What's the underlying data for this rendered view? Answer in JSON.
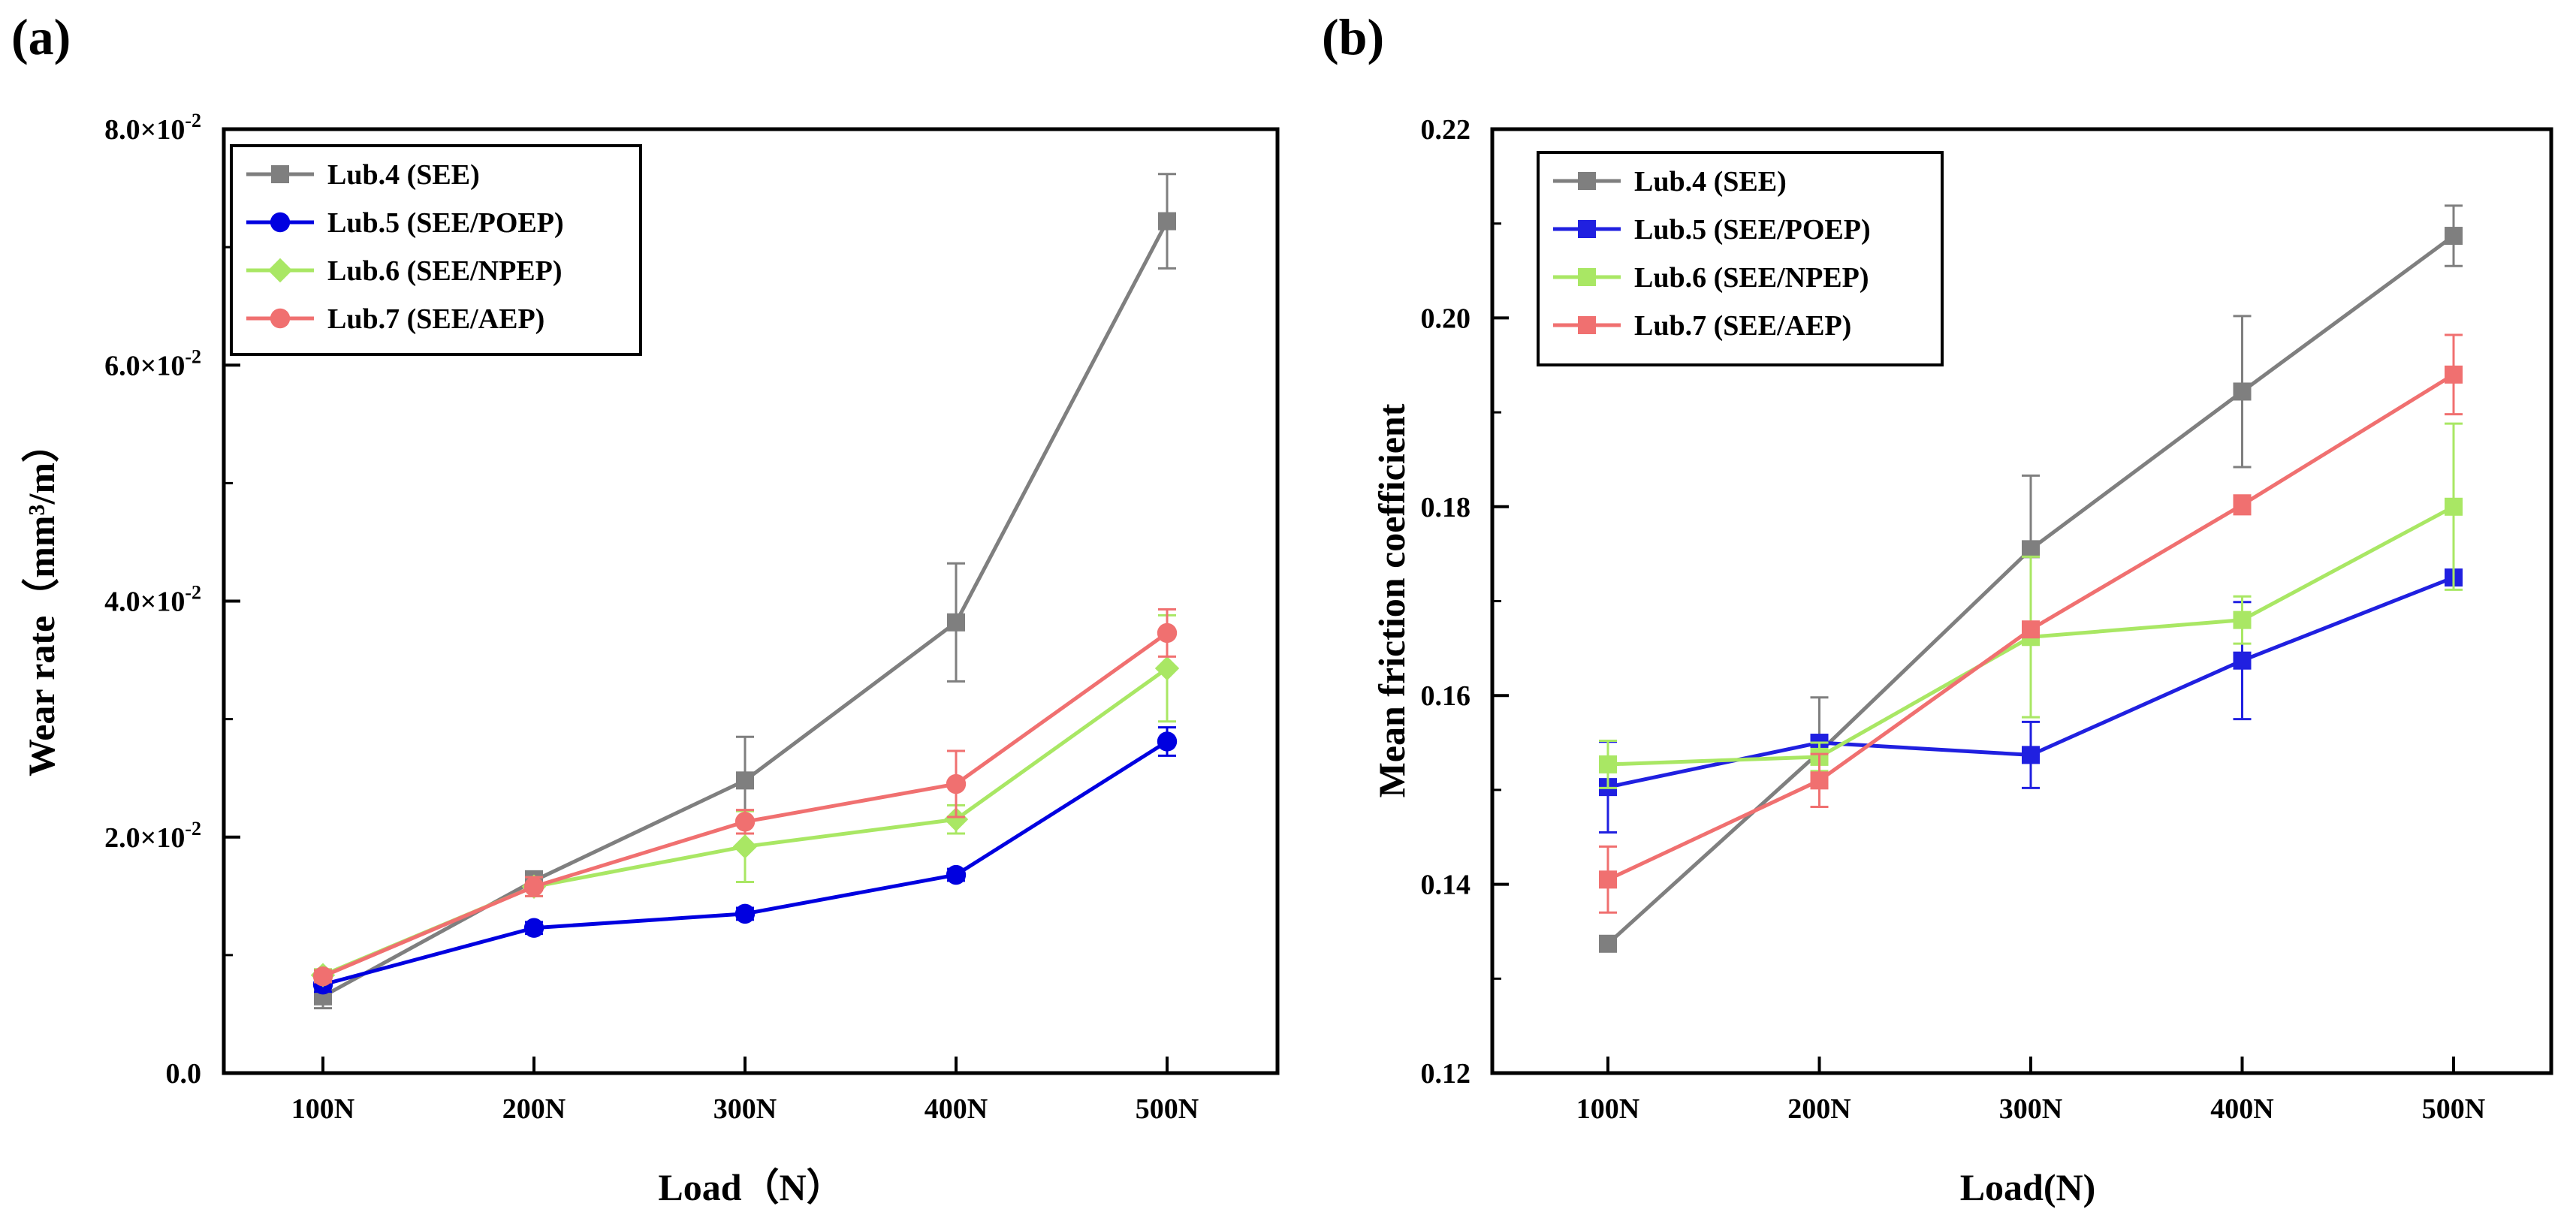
{
  "chart_data": [
    {
      "type": "line",
      "panel_label": "(a)",
      "xlabel": "Load（N）",
      "ylabel": "Wear rate（mm³/m）",
      "categories": [
        "100N",
        "200N",
        "300N",
        "400N",
        "500N"
      ],
      "ylim": [
        0,
        0.08
      ],
      "yticks": [
        {
          "value": 0.0,
          "label_base": "0.0",
          "label_exp": ""
        },
        {
          "value": 0.02,
          "label_base": "2.0×10",
          "label_exp": "-2"
        },
        {
          "value": 0.04,
          "label_base": "4.0×10",
          "label_exp": "-2"
        },
        {
          "value": 0.06,
          "label_base": "6.0×10",
          "label_exp": "-2"
        },
        {
          "value": 0.08,
          "label_base": "8.0×10",
          "label_exp": "-2"
        }
      ],
      "legend_position": "top-left",
      "series": [
        {
          "name": "Lub.4 (SEE)",
          "color": "#7f7f7f",
          "marker": "square",
          "values": [
            0.0065,
            0.0163,
            0.0248,
            0.0382,
            0.0722
          ],
          "errors": [
            0.001,
            0.0008,
            0.0037,
            0.005,
            0.004
          ]
        },
        {
          "name": "Lub.5 (SEE/POEP)",
          "color": "#0000e0",
          "marker": "circle",
          "values": [
            0.0075,
            0.0123,
            0.0135,
            0.0168,
            0.0281
          ],
          "errors": [
            0.0006,
            0.0005,
            0.0005,
            0.0005,
            0.0012
          ]
        },
        {
          "name": "Lub.6 (SEE/NPEP)",
          "color": "#a9e764",
          "marker": "diamond",
          "values": [
            0.0083,
            0.0158,
            0.0192,
            0.0215,
            0.0343
          ],
          "errors": [
            0.0005,
            0.0008,
            0.003,
            0.0012,
            0.0045
          ]
        },
        {
          "name": "Lub.7 (SEE/AEP)",
          "color": "#f07070",
          "marker": "circle",
          "values": [
            0.0082,
            0.0158,
            0.0213,
            0.0245,
            0.0373
          ],
          "errors": [
            0.0005,
            0.0008,
            0.001,
            0.0028,
            0.002
          ]
        }
      ]
    },
    {
      "type": "line",
      "panel_label": "(b)",
      "xlabel": "Load(N)",
      "ylabel": "Mean friction coefficient",
      "categories": [
        "100N",
        "200N",
        "300N",
        "400N",
        "500N"
      ],
      "ylim": [
        0.12,
        0.22
      ],
      "yticks": [
        {
          "value": 0.12,
          "label_base": "0.12",
          "label_exp": ""
        },
        {
          "value": 0.14,
          "label_base": "0.14",
          "label_exp": ""
        },
        {
          "value": 0.16,
          "label_base": "0.16",
          "label_exp": ""
        },
        {
          "value": 0.18,
          "label_base": "0.18",
          "label_exp": ""
        },
        {
          "value": 0.2,
          "label_base": "0.20",
          "label_exp": ""
        },
        {
          "value": 0.22,
          "label_base": "0.22",
          "label_exp": ""
        }
      ],
      "legend_position": "top-left",
      "series": [
        {
          "name": "Lub.4 (SEE)",
          "color": "#7f7f7f",
          "marker": "square",
          "values": [
            0.1337,
            0.154,
            0.1755,
            0.1922,
            0.2087
          ],
          "errors": [
            0.0005,
            0.0058,
            0.0078,
            0.008,
            0.0032
          ]
        },
        {
          "name": "Lub.5 (SEE/POEP)",
          "color": "#2020e0",
          "marker": "square",
          "values": [
            0.1503,
            0.155,
            0.1537,
            0.1637,
            0.1725
          ],
          "errors": [
            0.0048,
            0.0008,
            0.0035,
            0.0062,
            0.0008
          ]
        },
        {
          "name": "Lub.6 (SEE/NPEP)",
          "color": "#a9e764",
          "marker": "square",
          "values": [
            0.1527,
            0.1535,
            0.1662,
            0.168,
            0.18
          ],
          "errors": [
            0.0025,
            0.0015,
            0.0085,
            0.0025,
            0.0088
          ]
        },
        {
          "name": "Lub.7 (SEE/AEP)",
          "color": "#f07070",
          "marker": "square",
          "values": [
            0.1405,
            0.151,
            0.167,
            0.1802,
            0.194
          ],
          "errors": [
            0.0035,
            0.0028,
            0.0008,
            0.001,
            0.0042
          ]
        }
      ]
    }
  ]
}
